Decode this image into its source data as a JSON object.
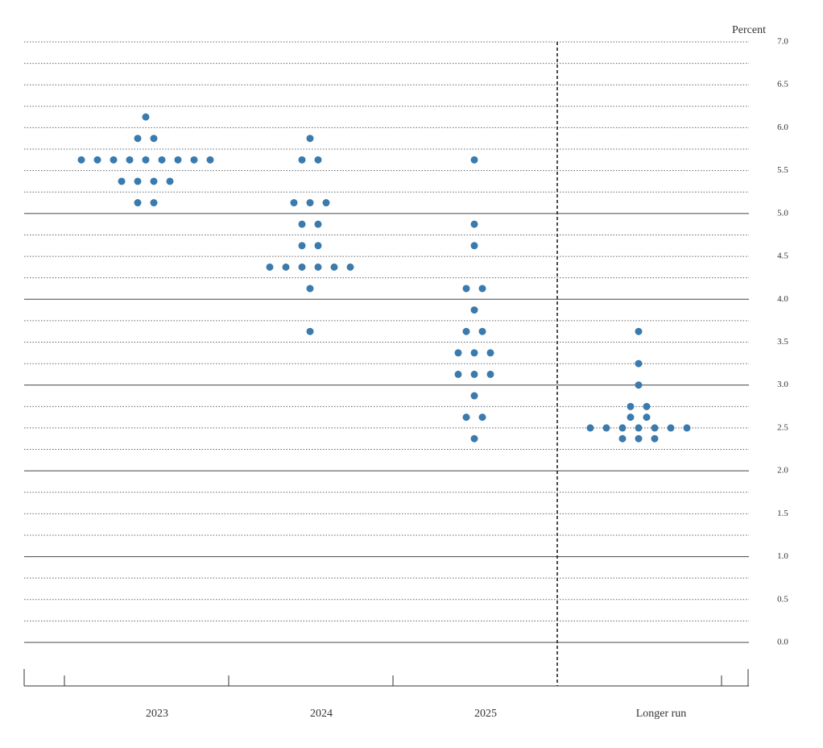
{
  "chart_data": {
    "type": "dot",
    "y_label": "Percent",
    "categories": [
      "2023",
      "2024",
      "2025",
      "Longer run"
    ],
    "color": "#3a7aad",
    "values": [
      [
        6.125,
        5.875,
        5.875,
        5.625,
        5.625,
        5.625,
        5.625,
        5.625,
        5.625,
        5.625,
        5.625,
        5.625,
        5.375,
        5.375,
        5.375,
        5.375,
        5.125,
        5.125
      ],
      [
        5.875,
        5.625,
        5.625,
        5.125,
        5.125,
        5.125,
        4.875,
        4.875,
        4.625,
        4.625,
        4.375,
        4.375,
        4.375,
        4.375,
        4.375,
        4.375,
        4.125,
        3.625
      ],
      [
        5.625,
        4.875,
        4.625,
        4.125,
        4.125,
        3.875,
        3.625,
        3.625,
        3.375,
        3.375,
        3.375,
        3.125,
        3.125,
        3.125,
        2.875,
        2.625,
        2.625,
        2.375
      ],
      [
        3.625,
        3.25,
        3.0,
        2.75,
        2.75,
        2.625,
        2.625,
        2.5,
        2.5,
        2.5,
        2.5,
        2.5,
        2.5,
        2.5,
        2.375,
        2.375,
        2.375
      ]
    ],
    "ylim": [
      0,
      7
    ],
    "yticks": [
      {
        "value": 0,
        "label": "0.0"
      },
      0.5,
      {
        "value": 1,
        "label": "1.0"
      },
      1.5,
      {
        "value": 2,
        "label": "2.0"
      },
      2.5,
      {
        "value": 3,
        "label": "3.0"
      },
      3.5,
      {
        "value": 4,
        "label": "4.0"
      },
      4.5,
      {
        "value": 5,
        "label": "5.0"
      },
      5.5,
      {
        "value": 6,
        "label": "6.0"
      },
      6.5,
      {
        "value": 7,
        "label": "7.0"
      }
    ],
    "grid": true
  }
}
